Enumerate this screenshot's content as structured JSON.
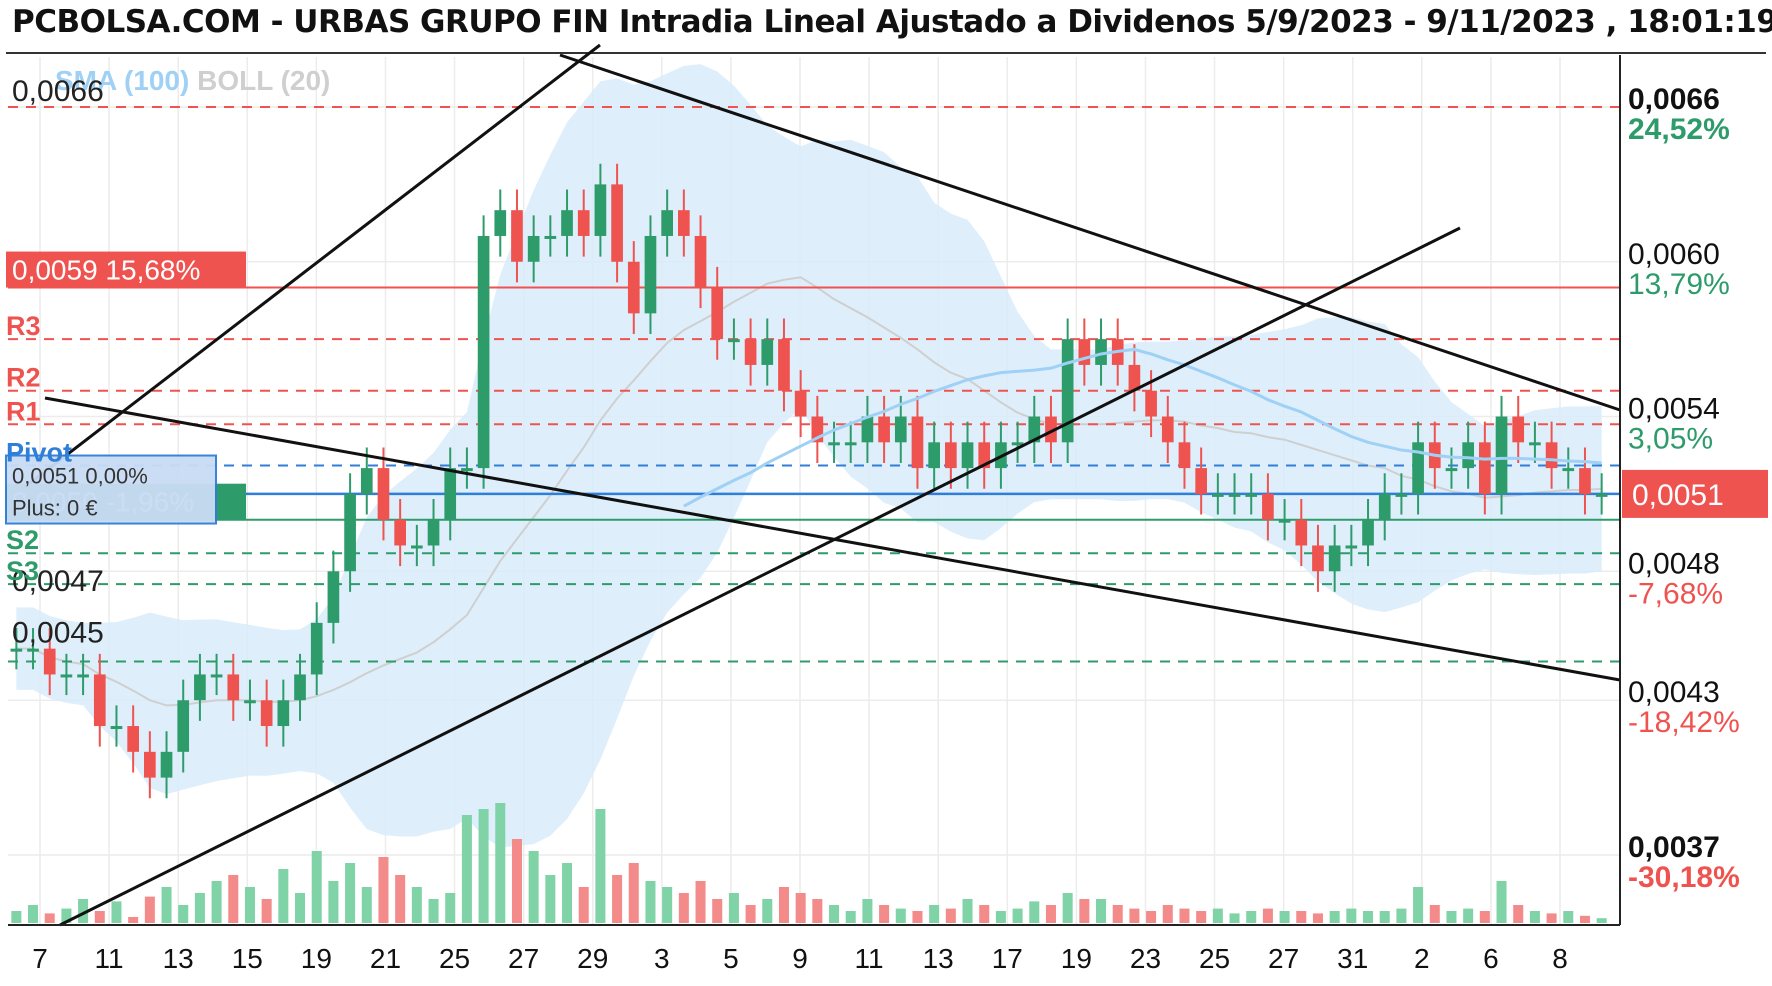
{
  "header": {
    "title": "PCBOLSA.COM - URBAS GRUPO FIN Intradia Lineal Ajustado a Dividenos 5/9/2023 - 9/11/2023 , 18:01:19"
  },
  "legend": {
    "sma": "SMA (100)",
    "boll": "BOLL (20)",
    "sma_color": "#9fd0f5",
    "boll_color": "#cfcfcf"
  },
  "colors": {
    "up": "#2e9b6a",
    "down": "#ef5350",
    "band": "#d8ecfa",
    "pivot": "#2f7ed8",
    "resistance": "#ef5350",
    "support": "#2e9b6a",
    "trend": "#111111"
  },
  "chart_data": {
    "type": "candlestick",
    "x_tick_labels": [
      "7",
      "11",
      "13",
      "15",
      "19",
      "21",
      "25",
      "27",
      "29",
      "3",
      "5",
      "9",
      "11",
      "13",
      "17",
      "19",
      "23",
      "25",
      "27",
      "31",
      "2",
      "6",
      "8"
    ],
    "ylim": [
      0.0037,
      0.0066
    ],
    "right_axis": [
      {
        "price": "0,0066",
        "pct": "24,52%",
        "value": 0.0066
      },
      {
        "price": "0,0060",
        "pct": "13,79%",
        "value": 0.006
      },
      {
        "price": "0,0054",
        "pct": "3,05%",
        "value": 0.0054
      },
      {
        "price": "0,0048",
        "pct": "-7,68%",
        "value": 0.0048
      },
      {
        "price": "0,0043",
        "pct": "-18,42%",
        "value": 0.0043
      },
      {
        "price": "0,0037",
        "pct": "-30,18%",
        "value": 0.0037
      }
    ],
    "current_price": {
      "label": "0,0051",
      "value": 0.0051
    },
    "left_value_labels": [
      {
        "label": "0,0066",
        "value": 0.0066
      },
      {
        "label": "0,0047",
        "value": 0.0047
      },
      {
        "label": "0,0045",
        "value": 0.0045
      }
    ],
    "marked_levels": [
      {
        "label": "0,0059  15,68%",
        "value": 0.0059,
        "color": "#ef5350"
      },
      {
        "label": "0,0050  -1,96%",
        "value": 0.005,
        "color": "#2e9b6a"
      }
    ],
    "pivot_levels": [
      {
        "name": "R3",
        "value": 0.0057
      },
      {
        "name": "R2",
        "value": 0.0055
      },
      {
        "name": "R1",
        "value": 0.00537
      },
      {
        "name": "Pivot",
        "value": 0.00521
      },
      {
        "name": "S2",
        "value": 0.00487
      },
      {
        "name": "S3",
        "value": 0.00475
      }
    ],
    "pivot_box_text": [
      "0,0051  0,00%",
      "Plus: 0 €"
    ],
    "close": [
      0.0045,
      0.0045,
      0.0044,
      0.0044,
      0.0044,
      0.0042,
      0.0042,
      0.0041,
      0.004,
      0.0041,
      0.0043,
      0.0044,
      0.0044,
      0.0043,
      0.0043,
      0.0042,
      0.0043,
      0.0044,
      0.0046,
      0.0048,
      0.0051,
      0.0052,
      0.005,
      0.0049,
      0.0049,
      0.005,
      0.0052,
      0.0052,
      0.0061,
      0.0062,
      0.006,
      0.0061,
      0.0061,
      0.0062,
      0.0061,
      0.0063,
      0.006,
      0.0058,
      0.0061,
      0.0062,
      0.0061,
      0.0059,
      0.0057,
      0.0057,
      0.0056,
      0.0057,
      0.0055,
      0.0054,
      0.0053,
      0.0053,
      0.0053,
      0.0054,
      0.0053,
      0.0054,
      0.0052,
      0.0053,
      0.0052,
      0.0053,
      0.0052,
      0.0053,
      0.0053,
      0.0054,
      0.0053,
      0.0057,
      0.0056,
      0.0057,
      0.0056,
      0.0055,
      0.0054,
      0.0053,
      0.0052,
      0.0051,
      0.0051,
      0.0051,
      0.0051,
      0.005,
      0.005,
      0.0049,
      0.0048,
      0.0049,
      0.0049,
      0.005,
      0.0051,
      0.0051,
      0.0053,
      0.0052,
      0.0052,
      0.0053,
      0.0051,
      0.0054,
      0.0053,
      0.0053,
      0.0052,
      0.0052,
      0.0051,
      0.0051
    ],
    "volume_relative": [
      0.1,
      0.15,
      0.08,
      0.12,
      0.2,
      0.1,
      0.18,
      0.05,
      0.22,
      0.3,
      0.15,
      0.25,
      0.35,
      0.4,
      0.3,
      0.2,
      0.45,
      0.25,
      0.6,
      0.35,
      0.5,
      0.3,
      0.55,
      0.4,
      0.3,
      0.2,
      0.25,
      0.9,
      0.95,
      1.0,
      0.7,
      0.6,
      0.4,
      0.5,
      0.3,
      0.95,
      0.4,
      0.5,
      0.35,
      0.3,
      0.25,
      0.35,
      0.2,
      0.25,
      0.15,
      0.2,
      0.3,
      0.25,
      0.2,
      0.15,
      0.1,
      0.2,
      0.15,
      0.12,
      0.1,
      0.15,
      0.12,
      0.2,
      0.15,
      0.1,
      0.12,
      0.18,
      0.15,
      0.25,
      0.2,
      0.2,
      0.15,
      0.12,
      0.1,
      0.15,
      0.12,
      0.1,
      0.12,
      0.08,
      0.1,
      0.12,
      0.1,
      0.1,
      0.08,
      0.1,
      0.12,
      0.1,
      0.1,
      0.12,
      0.3,
      0.15,
      0.1,
      0.12,
      0.1,
      0.35,
      0.15,
      0.1,
      0.08,
      0.1,
      0.06,
      0.04
    ]
  }
}
